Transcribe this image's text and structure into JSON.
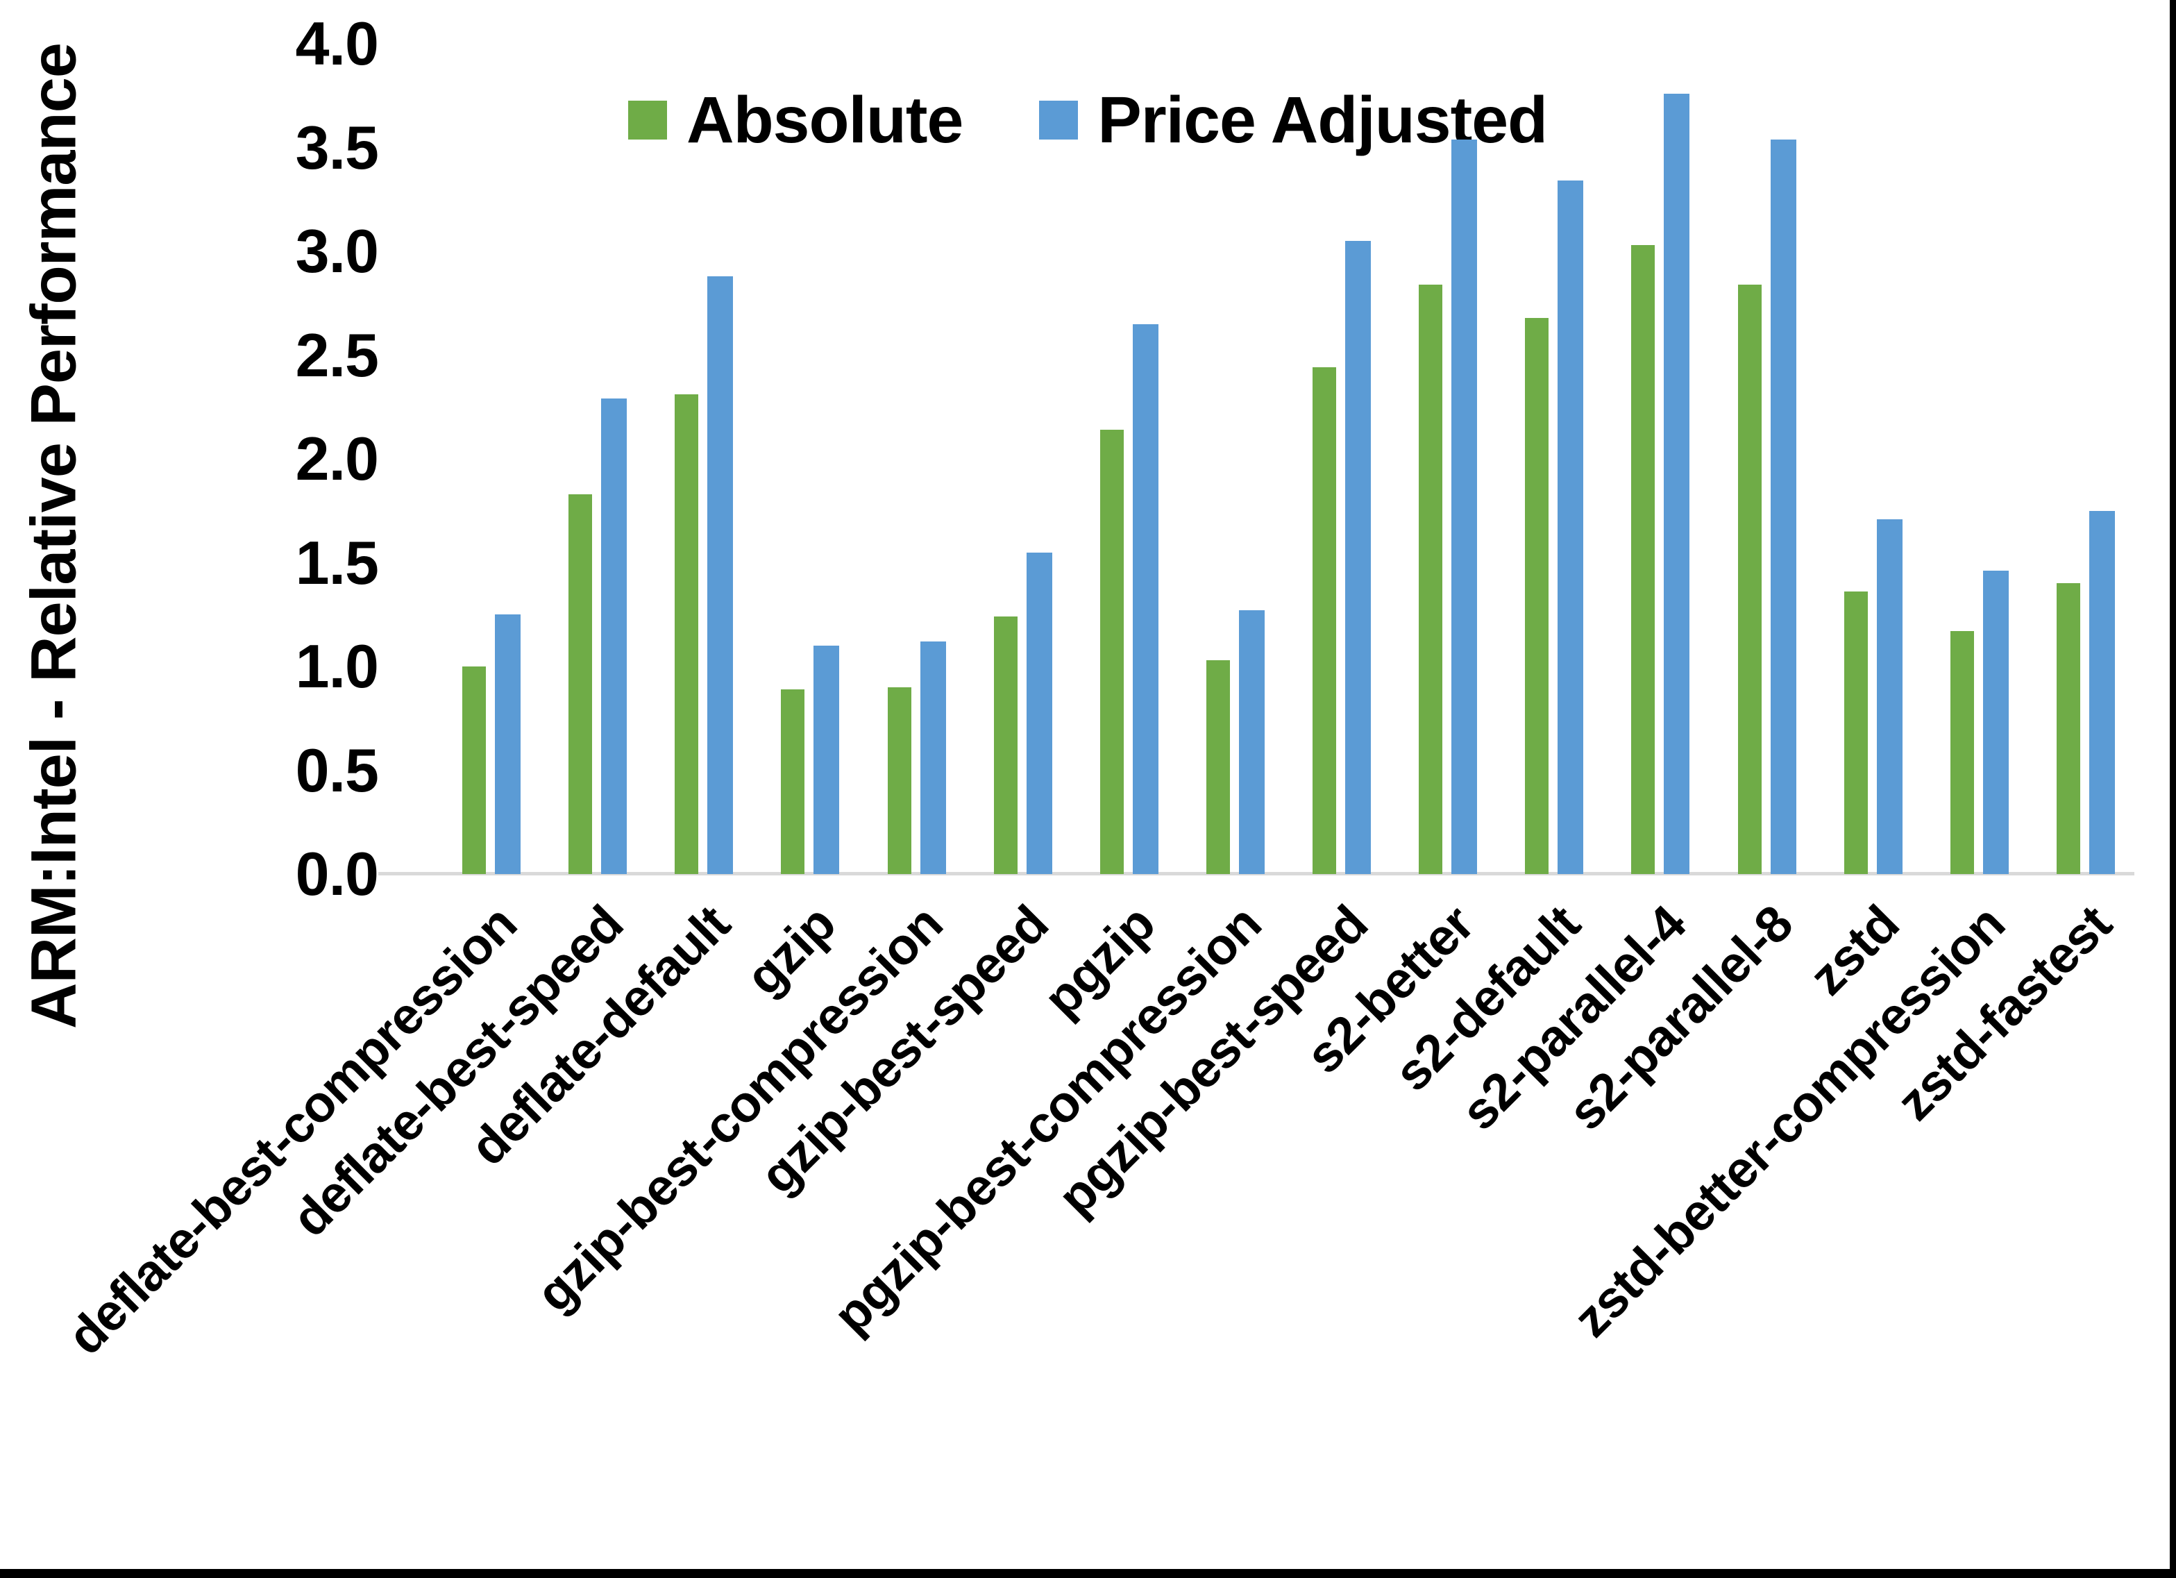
{
  "chart_data": {
    "type": "bar",
    "title": "",
    "xlabel": "",
    "ylabel": "ARM:Intel - Relative Performance",
    "ylim": [
      0,
      4
    ],
    "grid": false,
    "legend_position": "top-center",
    "yticks": [
      "4.0",
      "3.5",
      "3.0",
      "2.5",
      "2.0",
      "1.5",
      "1.0",
      "0.5",
      "0.0"
    ],
    "categories": [
      "deflate-best-compression",
      "deflate-best-speed",
      "deflate-default",
      "gzip",
      "gzip-best-compression",
      "gzip-best-speed",
      "pgzip",
      "pgzip-best-compression",
      "pgzip-best-speed",
      "s2-better",
      "s2-default",
      "s2-parallel-4",
      "s2-parallel-8",
      "zstd",
      "zstd-better-compression",
      "zstd-fastest"
    ],
    "series": [
      {
        "name": "Absolute",
        "color": "#6FAC47",
        "values": [
          1.0,
          1.83,
          2.31,
          0.89,
          0.9,
          1.24,
          2.14,
          1.03,
          2.44,
          2.84,
          2.68,
          3.03,
          2.84,
          1.36,
          1.17,
          1.4
        ]
      },
      {
        "name": "Price Adjusted",
        "color": "#5B9BD5",
        "values": [
          1.25,
          2.29,
          2.88,
          1.1,
          1.12,
          1.55,
          2.65,
          1.27,
          3.05,
          3.54,
          3.34,
          3.76,
          3.54,
          1.71,
          1.46,
          1.75
        ]
      }
    ],
    "axis_line_color": "#D9D9D9",
    "background_color": "#FFFFFF",
    "border_color": "#000000"
  }
}
